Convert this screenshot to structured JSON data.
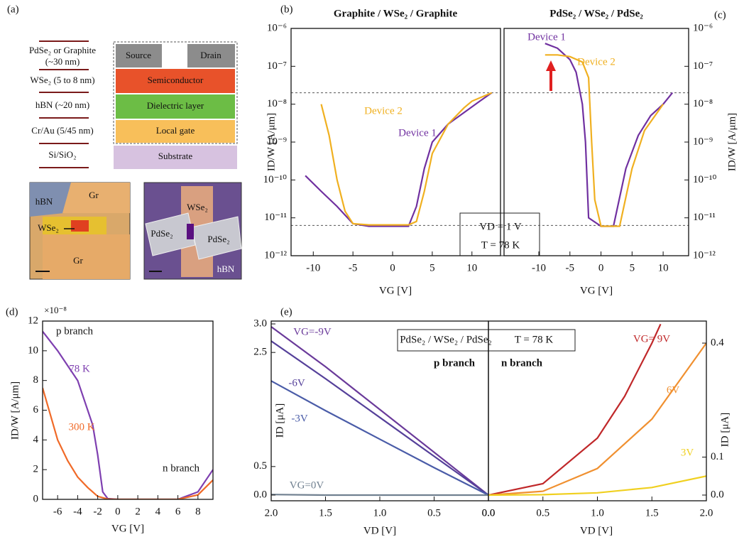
{
  "panel_labels": [
    "(a)",
    "(b)",
    "(c)",
    "(d)",
    "(e)"
  ],
  "panel_a": {
    "layer_labels": [
      "PdSe₂ or Graphite",
      "(~30 nm)",
      "WSe₂ (5 to 8 nm)",
      "hBN (~20 nm)",
      "Cr/Au (5/45 nm)",
      "Si/SiO₂"
    ],
    "stack": [
      "Source",
      "Drain",
      "Semiconductor",
      "Dielectric layer",
      "Local gate",
      "Substrate"
    ],
    "image_1_labels": [
      "Gr",
      "hBN",
      "WSe₂",
      "Gr"
    ],
    "image_2_labels": [
      "WSe₂",
      "PdSe₂",
      "PdSe₂",
      "hBN"
    ]
  },
  "chart_data": [
    {
      "type": "line",
      "title": "Graphite / WSe₂ / Graphite",
      "x_label": "VG [V]",
      "y_label": "ID/W [A/μm]",
      "log_y": true,
      "xlim": [
        -12.8,
        13.6
      ],
      "xticks": [
        -10,
        -5,
        0,
        5,
        10
      ],
      "ylim": [
        1e-12,
        1e-06
      ],
      "yticks": [
        {
          "value": 1e-12,
          "label": "10⁻¹²"
        },
        {
          "value": 1e-11,
          "label": "10⁻¹¹"
        },
        {
          "value": 1e-10,
          "label": "10⁻¹⁰"
        },
        {
          "value": 1e-09,
          "label": "10⁻⁹"
        },
        {
          "value": 1e-08,
          "label": "10⁻⁸"
        },
        {
          "value": 1e-07,
          "label": "10⁻⁷"
        },
        {
          "value": 1e-06,
          "label": "10⁻⁶"
        }
      ],
      "hlines": [
        2e-08,
        6.3e-12
      ],
      "annotations": [
        "VD = 1 V",
        "T = 78 K"
      ],
      "series": [
        {
          "name": "Device 1",
          "color": "#7030a0",
          "x": [
            -11,
            -9,
            -7,
            -5,
            -3,
            0,
            2,
            3,
            4,
            5,
            7,
            9,
            11,
            12.5
          ],
          "values": [
            1.3e-10,
            5e-11,
            2e-11,
            7e-12,
            6e-12,
            6e-12,
            6e-12,
            2e-11,
            2e-10,
            1e-09,
            3e-09,
            6e-09,
            1.2e-08,
            2e-08
          ]
        },
        {
          "name": "Device 2",
          "color": "#f0b020",
          "x": [
            -9,
            -8,
            -7,
            -6,
            -5,
            -3,
            0,
            2,
            3,
            4,
            5,
            7,
            9,
            10,
            12.5
          ],
          "values": [
            1e-08,
            1.5e-09,
            1e-10,
            1.5e-11,
            7e-12,
            6.5e-12,
            6.5e-12,
            6.5e-12,
            8e-12,
            5e-11,
            5e-10,
            3e-09,
            8e-09,
            1.2e-08,
            2e-08
          ]
        }
      ]
    },
    {
      "type": "line",
      "title": "PdSe₂ / WSe₂ / PdSe₂",
      "x_label": "VG [V]",
      "y_label": "ID/W [A/μm]",
      "log_y": true,
      "xlim": [
        -15.6,
        14.1
      ],
      "xticks": [
        -10,
        -5,
        0,
        5,
        10
      ],
      "ylim": [
        1e-12,
        1e-06
      ],
      "yticks": [
        {
          "value": 1e-12,
          "label": "10⁻¹²"
        },
        {
          "value": 1e-11,
          "label": "10⁻¹¹"
        },
        {
          "value": 1e-10,
          "label": "10⁻¹⁰"
        },
        {
          "value": 1e-09,
          "label": "10⁻⁹"
        },
        {
          "value": 1e-08,
          "label": "10⁻⁸"
        },
        {
          "value": 1e-07,
          "label": "10⁻⁷"
        },
        {
          "value": 1e-06,
          "label": "10⁻⁶"
        }
      ],
      "hlines": [
        2e-08,
        6.3e-12
      ],
      "series": [
        {
          "name": "Device 1",
          "color": "#7030a0",
          "x": [
            -9,
            -7,
            -5,
            -4,
            -3,
            -2.5,
            -2,
            0,
            2,
            4,
            6,
            8,
            10,
            11.5
          ],
          "values": [
            4e-07,
            3e-07,
            1.5e-07,
            7e-08,
            1e-08,
            1e-09,
            1e-11,
            6e-12,
            6e-12,
            2e-10,
            1.5e-09,
            5e-09,
            1e-08,
            2e-08
          ]
        },
        {
          "name": "Device 2",
          "color": "#f0b020",
          "x": [
            -9,
            -7,
            -5,
            -3,
            -2,
            -1.5,
            -1,
            0,
            2,
            3,
            5,
            7,
            10
          ],
          "values": [
            2e-07,
            2e-07,
            1.8e-07,
            1.3e-07,
            5e-08,
            1e-09,
            3e-11,
            6e-12,
            6e-12,
            6e-12,
            2e-10,
            2e-09,
            1e-08
          ]
        }
      ]
    },
    {
      "type": "line",
      "x_label": "VG [V]",
      "y_label": "ID/W [A/μm]",
      "y_multiplier": "×10⁻⁸",
      "xlim": [
        -7.5,
        9.5
      ],
      "xticks": [
        -6,
        -4,
        -2,
        0,
        2,
        4,
        6,
        8
      ],
      "ylim": [
        0,
        12
      ],
      "yticks": [
        0,
        2,
        4,
        6,
        8,
        10,
        12
      ],
      "annotations": [
        "p branch",
        "n branch"
      ],
      "series": [
        {
          "name": "78 K",
          "color": "#7e3fb0",
          "x": [
            -7.5,
            -6,
            -4,
            -2.5,
            -2,
            -1.5,
            -1,
            0,
            6,
            8,
            9.5
          ],
          "values": [
            11.3,
            10,
            8,
            5,
            3,
            0.5,
            0.05,
            0,
            0,
            0.5,
            2
          ]
        },
        {
          "name": "300 K",
          "color": "#f06a28",
          "x": [
            -7.5,
            -6,
            -5,
            -4,
            -3,
            -2,
            -1,
            0,
            6,
            8,
            9.5
          ],
          "values": [
            7.5,
            4,
            2.6,
            1.5,
            0.8,
            0.2,
            0.02,
            0,
            0,
            0.3,
            1.3
          ]
        }
      ]
    },
    {
      "type": "line",
      "x_label": "VD [V]",
      "y_label": "ID [μA]",
      "xlim": [
        2,
        0
      ],
      "xticks": [
        {
          "value": 2,
          "label": "2.0"
        },
        1.5,
        {
          "value": 1,
          "label": "1.0"
        },
        0.5,
        {
          "value": 0,
          "label": "0.0"
        }
      ],
      "ylim": [
        -0.1,
        3.05
      ],
      "yticks": [
        {
          "value": 0,
          "label": "0.0"
        },
        0.5,
        2.5,
        {
          "value": 3,
          "label": "3.0"
        }
      ],
      "annotations": [
        "PdSe₂ / WSe₂ / PdSe₂",
        "T = 78 K",
        "p branch",
        "n branch"
      ],
      "series": [
        {
          "name": "VG=-9V",
          "color": "#6a3a9a",
          "x": [
            0,
            0.5,
            1,
            1.5,
            2
          ],
          "values": [
            0,
            0.75,
            1.5,
            2.25,
            2.95
          ]
        },
        {
          "name": "-6V",
          "color": "#55409a",
          "x": [
            0,
            0.5,
            1,
            1.5,
            2
          ],
          "values": [
            0,
            0.68,
            1.36,
            2.04,
            2.7
          ]
        },
        {
          "name": "-3V",
          "color": "#4a5ca8",
          "x": [
            0,
            0.5,
            1,
            1.5,
            2
          ],
          "values": [
            0,
            0.48,
            0.98,
            1.48,
            2.0
          ]
        },
        {
          "name": "VG=0V",
          "color": "#708090",
          "x": [
            0,
            0.5,
            1,
            1.5,
            2
          ],
          "values": [
            0,
            0,
            0,
            0,
            0.01
          ]
        }
      ]
    },
    {
      "type": "line",
      "x_label": "VD [V]",
      "y_label": "ID [μA]",
      "xlim": [
        0,
        2
      ],
      "xticks": [
        {
          "value": 0,
          "label": "0.0"
        },
        0.5,
        {
          "value": 1,
          "label": "1.0"
        },
        1.5,
        {
          "value": 2,
          "label": "2.0"
        }
      ],
      "ylim": [
        -0.015,
        0.458
      ],
      "yticks": [
        {
          "value": 0,
          "label": "0.0"
        },
        0.1,
        0.4
      ],
      "series": [
        {
          "name": "VG= 9V",
          "color": "#c0282a",
          "x": [
            0,
            0.5,
            1,
            1.25,
            1.5,
            1.58
          ],
          "values": [
            0,
            0.03,
            0.15,
            0.26,
            0.4,
            0.45
          ]
        },
        {
          "name": "6V",
          "color": "#f09030",
          "x": [
            0,
            0.5,
            1,
            1.5,
            2
          ],
          "values": [
            0,
            0.01,
            0.07,
            0.2,
            0.4
          ]
        },
        {
          "name": "3V",
          "color": "#f0d020",
          "x": [
            0,
            0.5,
            1,
            1.5,
            2
          ],
          "values": [
            0,
            0.001,
            0.006,
            0.02,
            0.05
          ]
        }
      ]
    }
  ]
}
